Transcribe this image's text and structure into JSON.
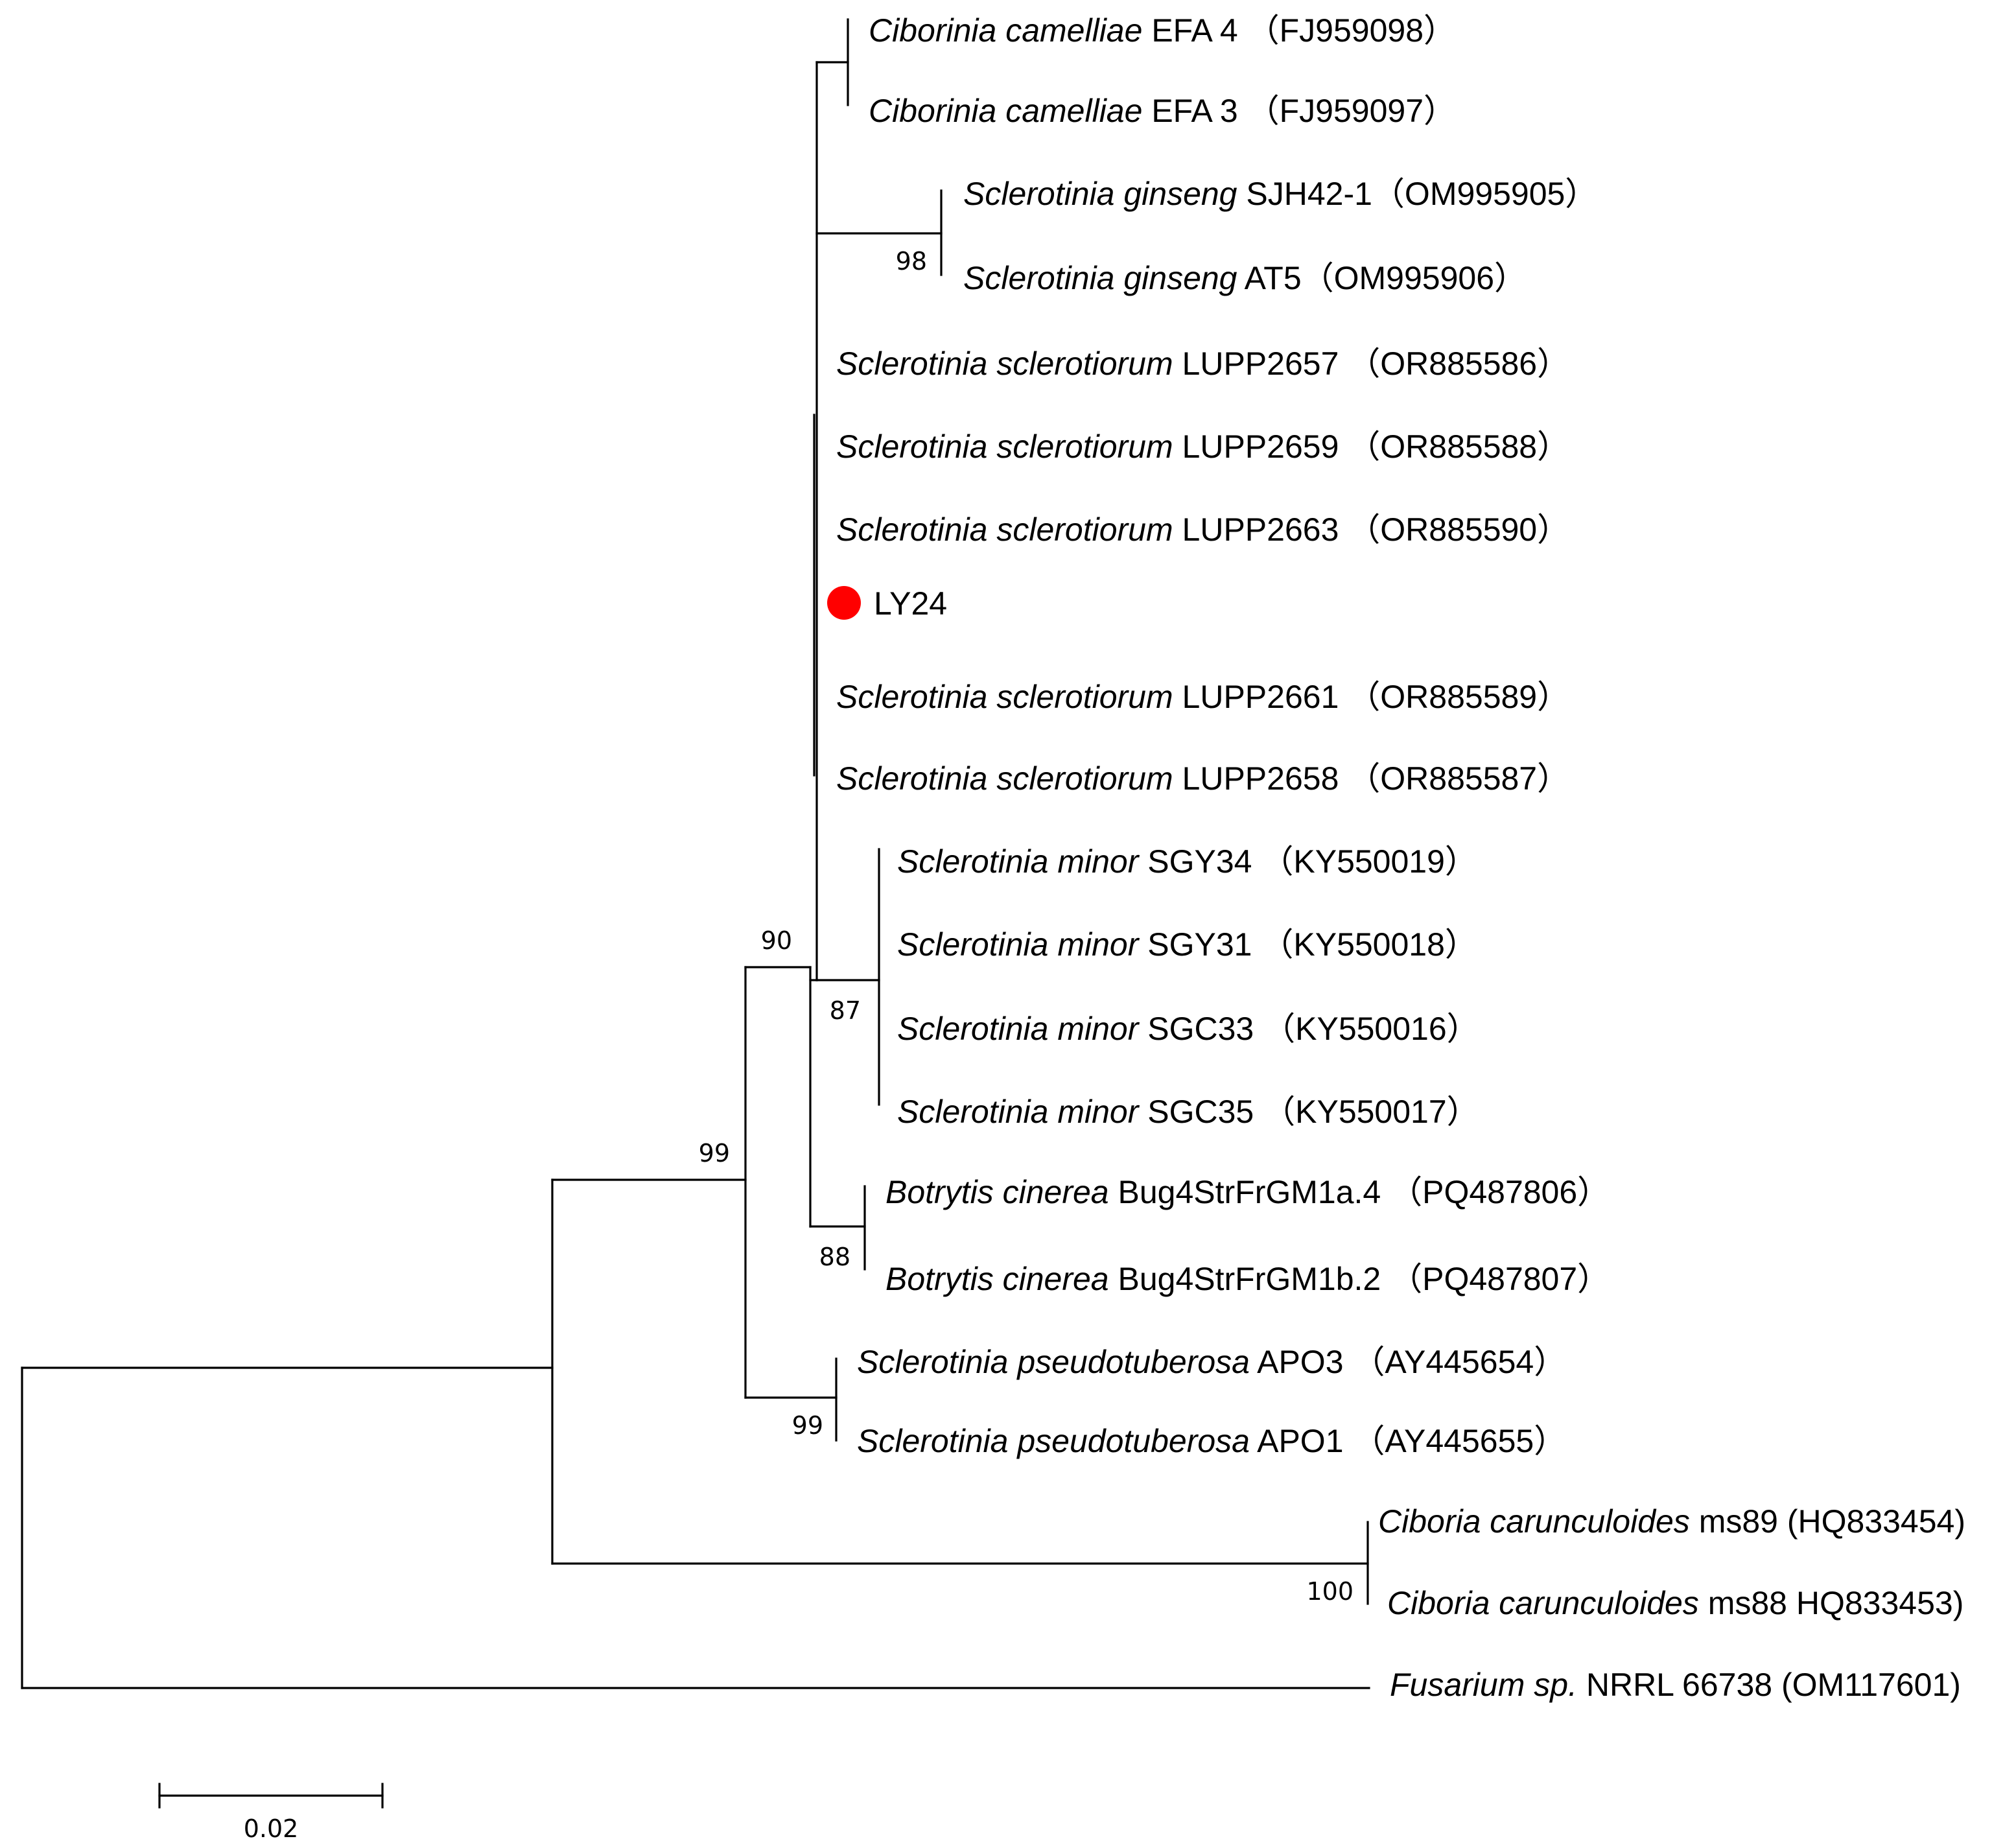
{
  "taxa": [
    {
      "id": "t1",
      "genus": "Ciborinia camelliae",
      "strain": " EFA 4 （FJ959098）"
    },
    {
      "id": "t2",
      "genus": "Ciborinia camelliae",
      "strain": " EFA 3 （FJ959097）"
    },
    {
      "id": "t3",
      "genus": "Sclerotinia ginseng",
      "strain": " SJH42-1（OM995905）"
    },
    {
      "id": "t4",
      "genus": "Sclerotinia ginseng",
      "strain": " AT5（OM995906）"
    },
    {
      "id": "t5",
      "genus": "Sclerotinia sclerotiorum",
      "strain": " LUPP2657 （OR885586）"
    },
    {
      "id": "t6",
      "genus": "Sclerotinia sclerotiorum",
      "strain": " LUPP2659 （OR885588）"
    },
    {
      "id": "t7",
      "genus": "Sclerotinia sclerotiorum",
      "strain": " LUPP2663 （OR885590）"
    },
    {
      "id": "t8",
      "genus": "",
      "strain": "LY24",
      "marker_color": "#ff0000"
    },
    {
      "id": "t9",
      "genus": "Sclerotinia sclerotiorum",
      "strain": " LUPP2661 （OR885589）"
    },
    {
      "id": "t10",
      "genus": "Sclerotinia sclerotiorum",
      "strain": " LUPP2658 （OR885587）"
    },
    {
      "id": "t11",
      "genus": "Sclerotinia minor",
      "strain": " SGY34 （KY550019）"
    },
    {
      "id": "t12",
      "genus": "Sclerotinia minor",
      "strain": " SGY31 （KY550018）"
    },
    {
      "id": "t13",
      "genus": "Sclerotinia minor",
      "strain": " SGC33 （KY550016）"
    },
    {
      "id": "t14",
      "genus": "Sclerotinia minor",
      "strain": " SGC35 （KY550017）"
    },
    {
      "id": "t15",
      "genus": "Botrytis cinerea",
      "strain": " Bug4StrFrGM1a.4 （PQ487806）"
    },
    {
      "id": "t16",
      "genus": "Botrytis cinerea",
      "strain": " Bug4StrFrGM1b.2 （PQ487807）"
    },
    {
      "id": "t17",
      "genus": "Sclerotinia pseudotuberosa",
      "strain": " APO3 （AY445654）"
    },
    {
      "id": "t18",
      "genus": "Sclerotinia pseudotuberosa",
      "strain": " APO1 （AY445655）"
    },
    {
      "id": "t19",
      "genus": "Ciboria carunculoides",
      "strain": " ms89 (HQ833454)"
    },
    {
      "id": "t20",
      "genus": "Ciboria carunculoides",
      "strain": " ms88 HQ833453)"
    },
    {
      "id": "t21",
      "genus": "Fusarium sp.",
      "strain": " NRRL 66738 (OM117601)"
    }
  ],
  "support_values": {
    "ginseng": "98",
    "minor": "87",
    "sclerotinia_core": "90",
    "botrytis": "88",
    "ingroup": "99",
    "pseudotuberosa": "99",
    "ciboria": "100"
  },
  "scale_bar": {
    "label": "0.02",
    "value": 0.02
  }
}
